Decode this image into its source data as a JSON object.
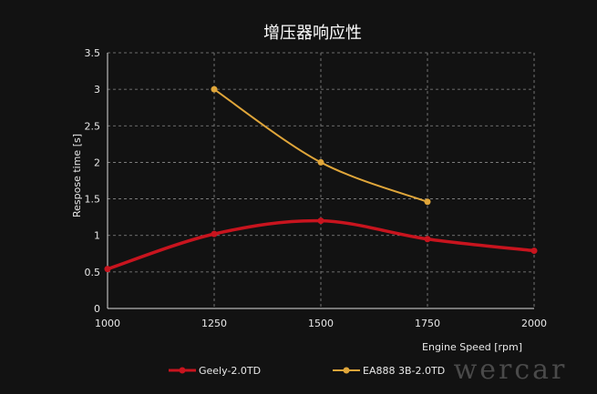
{
  "chart_data": {
    "type": "line",
    "title": "增压器响应性",
    "xlabel": "Engine Speed [rpm]",
    "ylabel": "Respose time [s]",
    "xlim": [
      1000,
      2000
    ],
    "ylim": [
      0,
      3.5
    ],
    "x_ticks": [
      "1000",
      "1250",
      "1500",
      "1750",
      "2000"
    ],
    "y_ticks": [
      "0",
      "0.5",
      "1",
      "1.5",
      "2",
      "2.5",
      "3",
      "3.5"
    ],
    "grid": true,
    "legend_position": "bottom",
    "series": [
      {
        "name": "Geely-2.0TD",
        "color": "#c8141e",
        "x": [
          1000,
          1250,
          1500,
          1750,
          2000
        ],
        "y": [
          0.54,
          1.02,
          1.2,
          0.95,
          0.79
        ]
      },
      {
        "name": "EA888 3B-2.0TD",
        "color": "#e0a63a",
        "x": [
          1250,
          1500,
          1750
        ],
        "y": [
          3.0,
          2.0,
          1.46
        ]
      }
    ]
  },
  "watermark": "wercar"
}
